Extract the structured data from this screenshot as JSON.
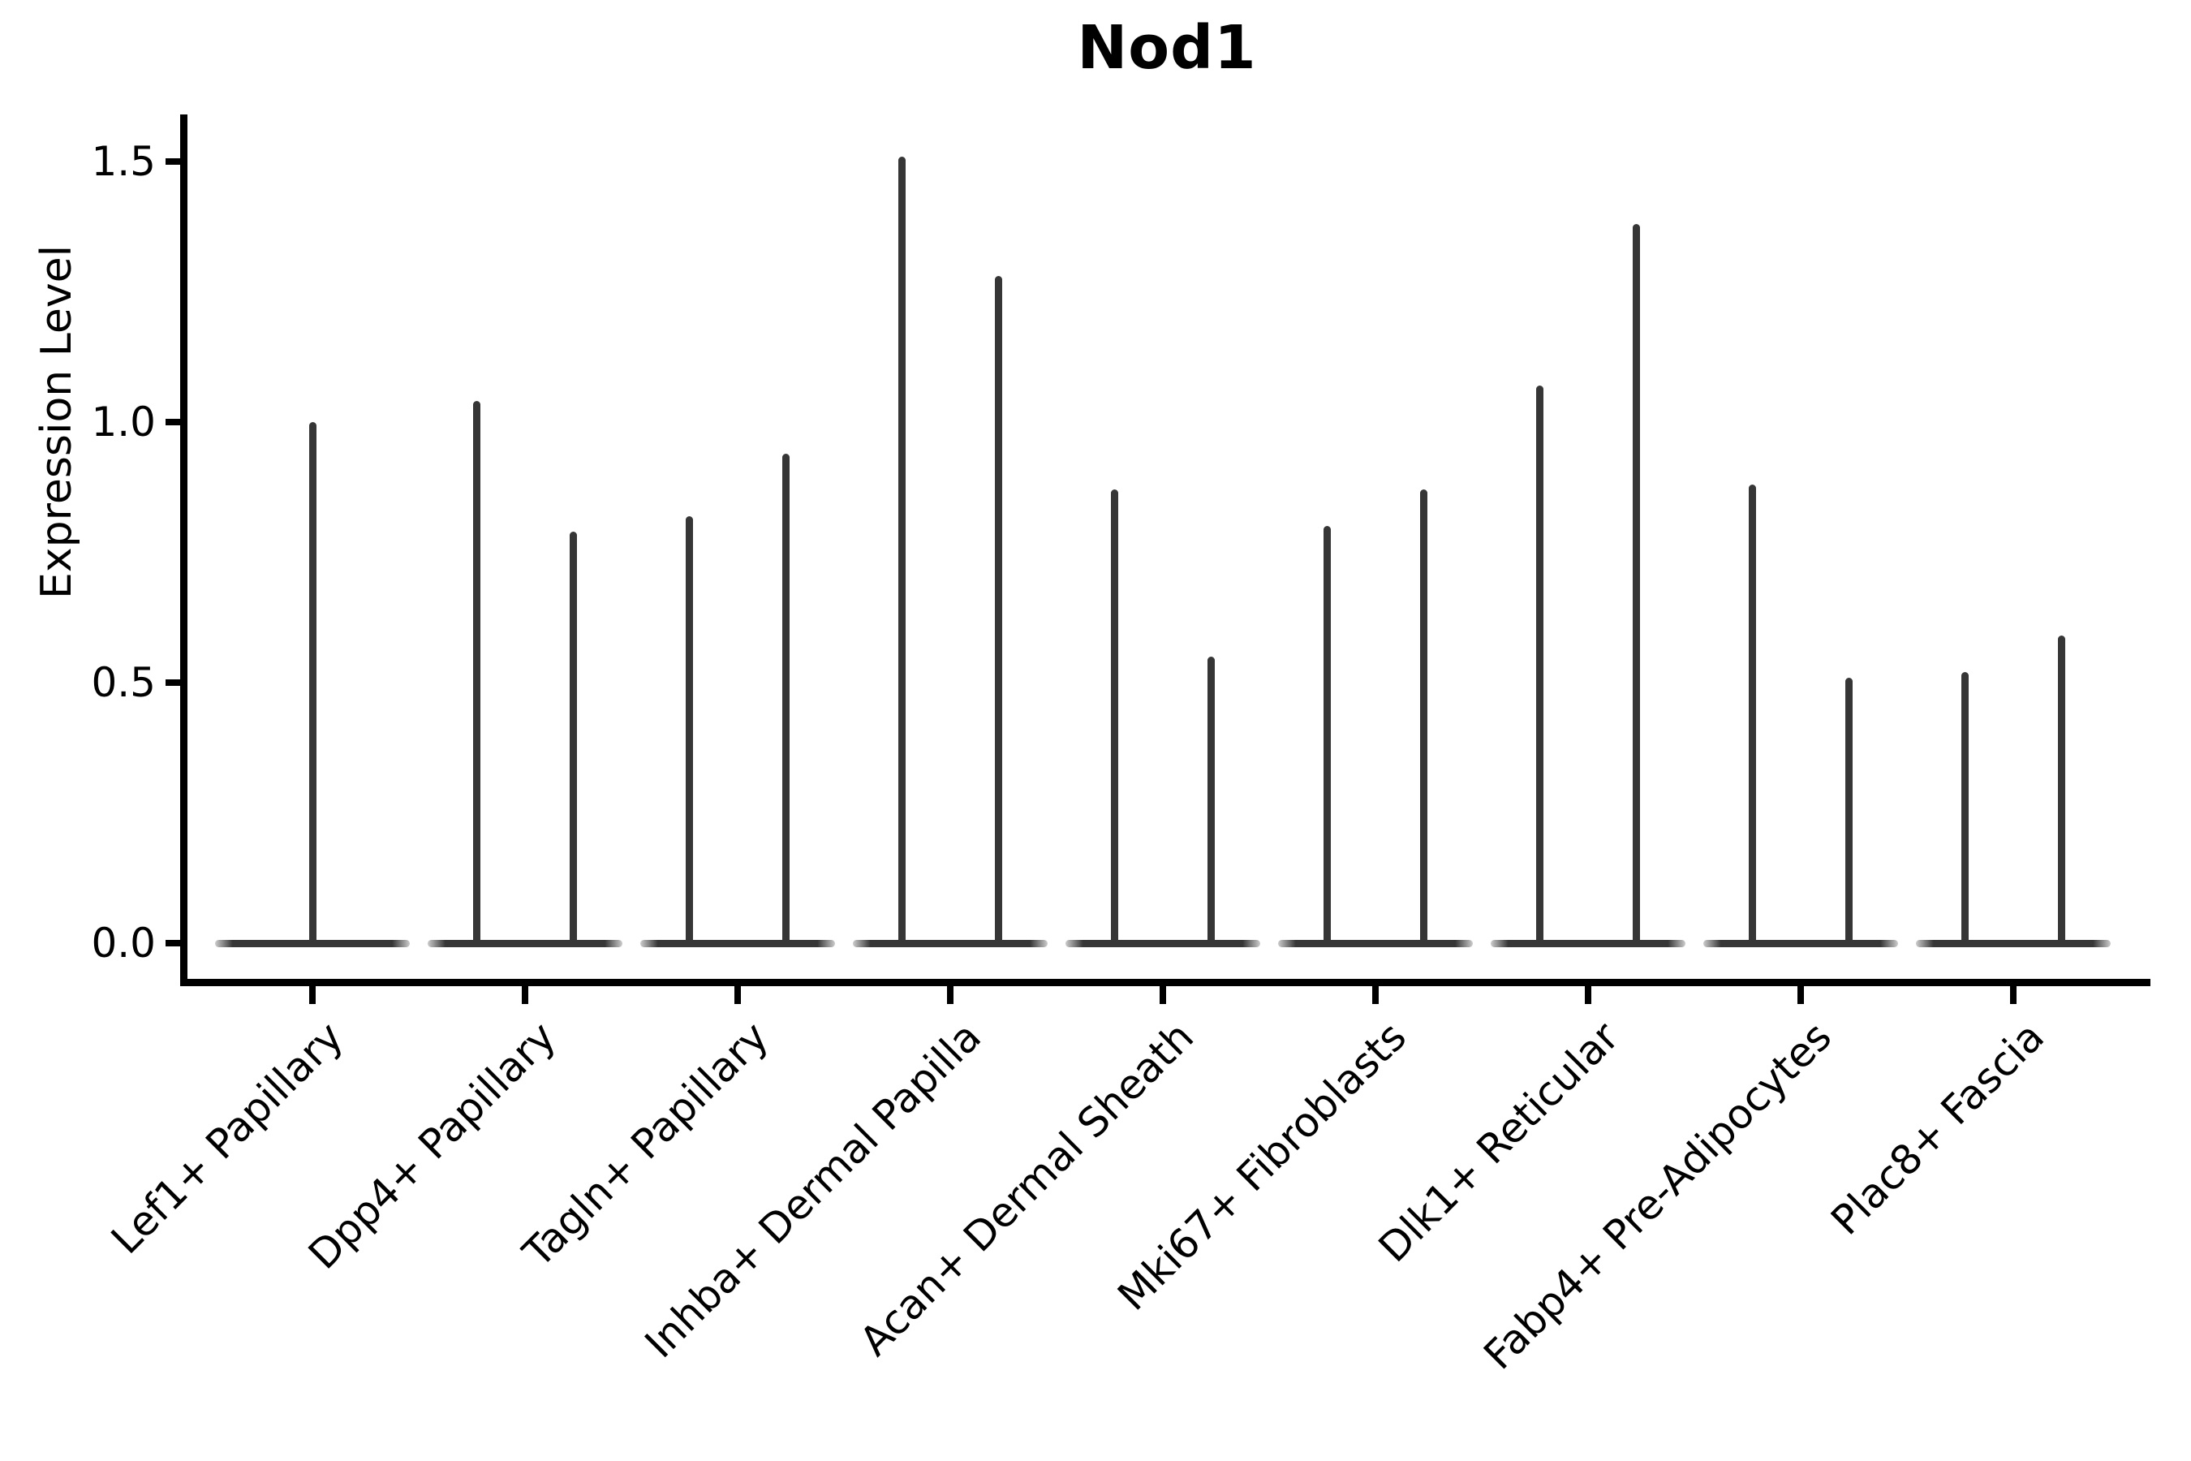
{
  "title": "Nod1",
  "y_axis": {
    "label": "Expression Level",
    "tick_labels": [
      "0.0",
      "0.5",
      "1.0",
      "1.5"
    ],
    "tick_values": [
      0.0,
      0.5,
      1.0,
      1.5
    ]
  },
  "x_axis": {
    "categories": [
      "Lef1+ Papillary",
      "Dpp4+ Papillary",
      "Tagln+ Papillary",
      "Inhba+ Dermal Papilla",
      "Acan+ Dermal Sheath",
      "Mki67+ Fibroblasts",
      "Dlk1+ Reticular",
      "Fabp4+ Pre-Adipocytes",
      "Plac8+ Fascia"
    ]
  },
  "chart_data": {
    "type": "violin",
    "title": "Nod1",
    "xlabel": "",
    "ylabel": "Expression Level",
    "ylim": [
      -0.08,
      1.6
    ],
    "y_ticks": [
      0.0,
      0.5,
      1.0,
      1.5
    ],
    "grid": false,
    "legend": false,
    "line_color": "#363636",
    "categories": [
      "Lef1+ Papillary",
      "Dpp4+ Papillary",
      "Tagln+ Papillary",
      "Inhba+ Dermal Papilla",
      "Acan+ Dermal Sheath",
      "Mki67+ Fibroblasts",
      "Dlk1+ Reticular",
      "Fabp4+ Pre-Adipocytes",
      "Plac8+ Fascia"
    ],
    "violins": [
      {
        "category": "Lef1+ Papillary",
        "baseline_value": 0.0,
        "spikes": [
          {
            "position": "center",
            "max": 1.0
          }
        ]
      },
      {
        "category": "Dpp4+ Papillary",
        "baseline_value": 0.0,
        "spikes": [
          {
            "position": "left",
            "max": 1.04
          },
          {
            "position": "right",
            "max": 0.79
          }
        ]
      },
      {
        "category": "Tagln+ Papillary",
        "baseline_value": 0.0,
        "spikes": [
          {
            "position": "left",
            "max": 0.82
          },
          {
            "position": "right",
            "max": 0.94
          }
        ]
      },
      {
        "category": "Inhba+ Dermal Papilla",
        "baseline_value": 0.0,
        "spikes": [
          {
            "position": "left",
            "max": 1.51
          },
          {
            "position": "right",
            "max": 1.28
          }
        ]
      },
      {
        "category": "Acan+ Dermal Sheath",
        "baseline_value": 0.0,
        "spikes": [
          {
            "position": "left",
            "max": 0.87
          },
          {
            "position": "right",
            "max": 0.55
          }
        ]
      },
      {
        "category": "Mki67+ Fibroblasts",
        "baseline_value": 0.0,
        "spikes": [
          {
            "position": "left",
            "max": 0.8
          },
          {
            "position": "right",
            "max": 0.87
          }
        ]
      },
      {
        "category": "Dlk1+ Reticular",
        "baseline_value": 0.0,
        "spikes": [
          {
            "position": "left",
            "max": 1.07
          },
          {
            "position": "right",
            "max": 1.38
          }
        ]
      },
      {
        "category": "Fabp4+ Pre-Adipocytes",
        "baseline_value": 0.0,
        "spikes": [
          {
            "position": "left",
            "max": 0.88
          },
          {
            "position": "right",
            "max": 0.51
          }
        ]
      },
      {
        "category": "Plac8+ Fascia",
        "baseline_value": 0.0,
        "spikes": [
          {
            "position": "left",
            "max": 0.52
          },
          {
            "position": "right",
            "max": 0.59
          }
        ]
      }
    ]
  }
}
